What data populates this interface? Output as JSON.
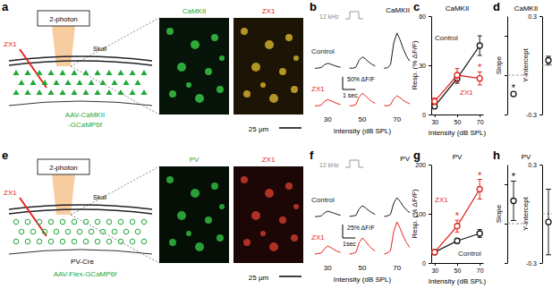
{
  "panel_labels": [
    "a",
    "b",
    "c",
    "d",
    "e",
    "f",
    "g",
    "h"
  ],
  "schematics": [
    {
      "two_photon": "2-photon",
      "drug": "ZX1",
      "skull": "Skull",
      "virus": [
        "AAV-CaMKII",
        "-GCaMP6f"
      ],
      "marker": "triangle"
    },
    {
      "two_photon": "2-photon",
      "drug": "ZX1",
      "skull": "Skull",
      "mouse": "PV-Cre",
      "virus": [
        "AAV-Flex-GCaMP6f"
      ],
      "marker": "circle"
    }
  ],
  "images": [
    {
      "left": "CaMKII",
      "right": "ZX1",
      "scale_bar": "25 µm"
    },
    {
      "left": "PV",
      "right": "ZX1",
      "scale_bar": "25 µm"
    }
  ],
  "chart_data": [
    {
      "type": "line",
      "title": "CaMKII",
      "stimulus": "12 kHz",
      "x": [
        0,
        0.25,
        0.5,
        0.75,
        1,
        1.25,
        1.5,
        1.75,
        2,
        2.35,
        2.7,
        2.95,
        3.2,
        3.45,
        3.7,
        3.95,
        4.2,
        4.45,
        4.7,
        5.05,
        5.4,
        5.65,
        5.9,
        6.15,
        6.4,
        6.65,
        6.9,
        7.15,
        7.4
      ],
      "series": [
        {
          "name": "Control",
          "color": "#1a1a1a",
          "values": [
            0,
            1,
            3,
            14,
            20,
            16,
            11,
            7,
            4,
            null,
            1,
            0,
            5,
            32,
            45,
            37,
            25,
            16,
            9,
            null,
            0,
            2,
            14,
            100,
            140,
            112,
            76,
            48,
            28
          ]
        },
        {
          "name": "ZX1",
          "color": "#e3261e",
          "values": [
            0,
            1,
            3,
            18,
            25,
            20,
            14,
            9,
            5,
            null,
            0,
            1,
            5,
            35,
            50,
            40,
            27,
            17,
            10,
            null,
            1,
            0,
            4,
            28,
            40,
            32,
            22,
            14,
            8
          ]
        }
      ],
      "xlim": [
        0,
        7.4
      ],
      "ylim": [
        -20,
        150
      ],
      "tick_labels": false,
      "intensities": [
        30,
        50,
        70
      ],
      "xlabel": "Intensity (dB SPL)",
      "scale_bar": {
        "y": 50,
        "y_label": "50% ΔF/F",
        "x": 1,
        "x_label": "1 sec"
      }
    },
    {
      "type": "line",
      "title": "CaMKII",
      "x": [
        30,
        50,
        70
      ],
      "series": [
        {
          "name": "Control",
          "color": "#1a1a1a",
          "marker": "circle",
          "values": [
            5,
            22,
            42
          ],
          "errors": [
            1.5,
            3,
            6
          ]
        },
        {
          "name": "ZX1",
          "color": "#e3261e",
          "marker": "circle",
          "values": [
            8,
            24,
            22
          ],
          "errors": [
            2,
            4,
            4
          ],
          "annotations": [
            null,
            null,
            "*"
          ]
        }
      ],
      "xlim": [
        27,
        73
      ],
      "ylim": [
        0,
        60
      ],
      "xticks": [
        30,
        50,
        70
      ],
      "yticks": [
        0,
        30,
        60
      ],
      "xlabel": "Intensity (dB SPL)",
      "ylabel": "Resp. (% ΔF/F)"
    },
    {
      "type": "scatter",
      "title": "CaMKII",
      "ylabel": "Slope",
      "values": [
        0.52
      ],
      "errors": [
        0.05
      ],
      "annotations": [
        "*"
      ],
      "ylim": [
        0,
        2.5
      ],
      "yticks": [
        0,
        1,
        2
      ],
      "tick_labels": false,
      "reference": 1,
      "color": "#1a1a1a",
      "marker": "circle"
    },
    {
      "type": "scatter",
      "ylabel": "Y-intercept",
      "values": [
        0.03
      ],
      "errors": [
        0.025
      ],
      "ylim": [
        -0.3,
        0.3
      ],
      "yticks": [
        -0.3,
        0.3
      ],
      "reference": 0,
      "color": "#1a1a1a",
      "marker": "circle"
    },
    {
      "type": "line",
      "title": "PV",
      "stimulus": "12 kHz",
      "x": [
        0,
        0.25,
        0.5,
        0.75,
        1,
        1.25,
        1.5,
        1.75,
        2,
        2.35,
        2.7,
        2.95,
        3.2,
        3.45,
        3.7,
        3.95,
        4.2,
        4.45,
        4.7,
        5.05,
        5.4,
        5.65,
        5.9,
        6.15,
        6.4,
        6.65,
        6.9,
        7.15,
        7.4
      ],
      "series": [
        {
          "name": "Control",
          "color": "#1a1a1a",
          "values": [
            0,
            0,
            1,
            7,
            10,
            8,
            6,
            4,
            2,
            null,
            0,
            1,
            2,
            14,
            20,
            16,
            11,
            7,
            4,
            null,
            0,
            1,
            4,
            25,
            35,
            28,
            19,
            12,
            7
          ]
        },
        {
          "name": "ZX1",
          "color": "#e3261e",
          "values": [
            0,
            1,
            2,
            10,
            15,
            12,
            8,
            5,
            3,
            null,
            0,
            1,
            3,
            21,
            30,
            24,
            16,
            10,
            6,
            null,
            0,
            2,
            6,
            42,
            60,
            48,
            33,
            21,
            12
          ]
        }
      ],
      "xlim": [
        0,
        7.4
      ],
      "ylim": [
        -10,
        70
      ],
      "tick_labels": false,
      "intensities": [
        30,
        50,
        70
      ],
      "xlabel": "Intensity (dB SPL)",
      "scale_bar": {
        "y": 25,
        "y_label": "25% ΔF/F",
        "x": 1,
        "x_label": "1sec"
      }
    },
    {
      "type": "line",
      "title": "PV",
      "x": [
        30,
        50,
        70
      ],
      "series": [
        {
          "name": "Control",
          "color": "#1a1a1a",
          "marker": "circle",
          "values": [
            22,
            45,
            60
          ],
          "errors": [
            3,
            5,
            8
          ]
        },
        {
          "name": "ZX1",
          "color": "#e3261e",
          "marker": "circle",
          "values": [
            22,
            75,
            150
          ],
          "errors": [
            3,
            12,
            20
          ],
          "annotations": [
            null,
            "*",
            "*"
          ]
        }
      ],
      "xlim": [
        27,
        73
      ],
      "ylim": [
        0,
        200
      ],
      "xticks": [
        30,
        50,
        70
      ],
      "yticks": [
        0,
        100,
        200
      ],
      "xlabel": "Intensity (dB SPL)",
      "ylabel": "Resp. (% ΔF/F)"
    },
    {
      "type": "scatter",
      "title": "PV",
      "ylabel": "Slope",
      "values": [
        1.58
      ],
      "errors": [
        0.5
      ],
      "annotations": [
        "*"
      ],
      "ylim": [
        0,
        2.5
      ],
      "yticks": [
        0,
        1,
        2
      ],
      "tick_labels": false,
      "reference": 1,
      "color": "#1a1a1a",
      "marker": "circle"
    },
    {
      "type": "scatter",
      "ylabel": "Y-intercept",
      "values": [
        -0.05
      ],
      "errors": [
        0.2
      ],
      "ylim": [
        -0.3,
        0.3
      ],
      "yticks": [
        -0.3,
        0.3
      ],
      "reference": 0,
      "color": "#1a1a1a",
      "marker": "circle"
    }
  ]
}
